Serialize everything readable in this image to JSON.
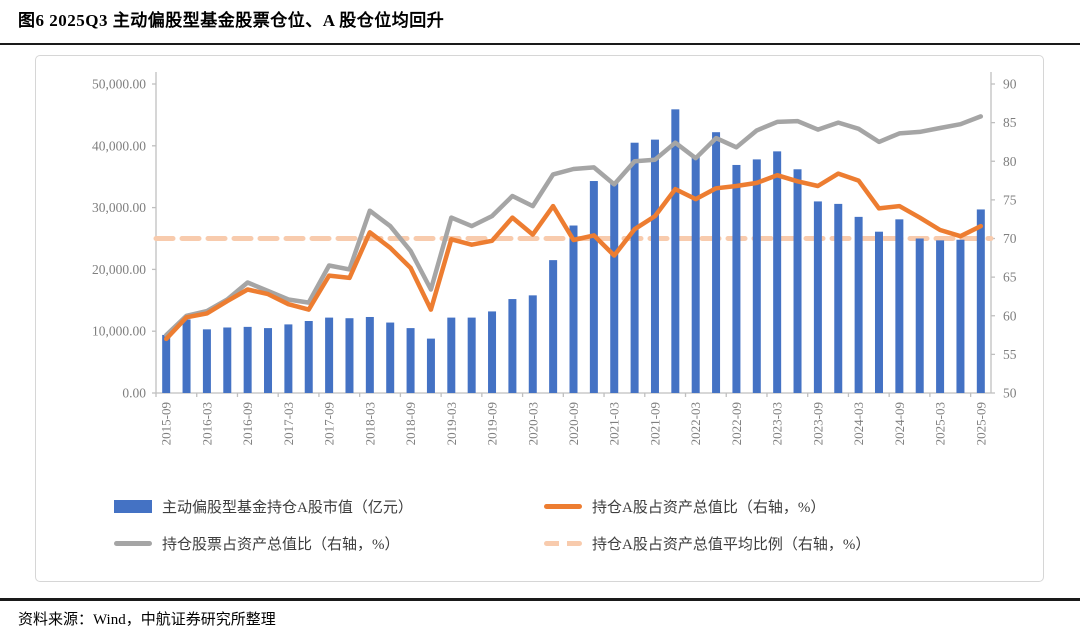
{
  "page": {
    "figure_title": "图6  2025Q3 主动偏股型基金股票仓位、A 股仓位均回升",
    "source_note": "资料来源：Wind，中航证券研究所整理"
  },
  "colors": {
    "bar_blue": "#4472C4",
    "orange_line": "#ED7D31",
    "gray_line": "#A5A5A5",
    "avg_dash": "#F8CBAD",
    "axis_text": "#7f7f7f",
    "axis_line": "#bfbfbf",
    "legend_text": "#3d3d3d"
  },
  "chart_data": {
    "type": "bar",
    "title": "",
    "grid": false,
    "legend_position": "bottom",
    "categories": [
      "2015-09",
      "2015-12",
      "2016-03",
      "2016-06",
      "2016-09",
      "2016-12",
      "2017-03",
      "2017-06",
      "2017-09",
      "2017-12",
      "2018-03",
      "2018-06",
      "2018-09",
      "2018-12",
      "2019-03",
      "2019-06",
      "2019-09",
      "2019-12",
      "2020-03",
      "2020-06",
      "2020-09",
      "2020-12",
      "2021-03",
      "2021-06",
      "2021-09",
      "2021-12",
      "2022-03",
      "2022-06",
      "2022-09",
      "2022-12",
      "2023-03",
      "2023-06",
      "2023-09",
      "2023-12",
      "2024-03",
      "2024-06",
      "2024-09",
      "2024-12",
      "2025-03",
      "2025-06",
      "2025-09"
    ],
    "x_tick_labels": [
      "2015-09",
      "2016-03",
      "2016-09",
      "2017-03",
      "2017-09",
      "2018-03",
      "2018-09",
      "2019-03",
      "2019-09",
      "2020-03",
      "2020-09",
      "2021-03",
      "2021-09",
      "2022-03",
      "2022-09",
      "2023-03",
      "2023-09",
      "2024-03",
      "2024-09",
      "2025-03",
      "2025-09"
    ],
    "left_axis": {
      "min": 0,
      "max": 50000,
      "step": 10000,
      "tick_labels": [
        "0.00",
        "10,000.00",
        "20,000.00",
        "30,000.00",
        "40,000.00",
        "50,000.00"
      ]
    },
    "right_axis": {
      "min": 50,
      "max": 90,
      "step": 5,
      "tick_labels": [
        "50",
        "55",
        "60",
        "65",
        "70",
        "75",
        "80",
        "85",
        "90"
      ]
    },
    "series": [
      {
        "name": "主动偏股型基金持仓A股市值（亿元）",
        "type": "bar",
        "axis": "left",
        "color": "#4472C4",
        "values": [
          9400,
          11900,
          10300,
          10600,
          10700,
          10500,
          11100,
          11650,
          12200,
          12100,
          12300,
          11400,
          10500,
          8800,
          12200,
          12200,
          13200,
          15200,
          15800,
          21500,
          27100,
          34300,
          34100,
          40500,
          41000,
          45900,
          38400,
          42200,
          36900,
          37800,
          39100,
          36200,
          31000,
          30600,
          28500,
          26100,
          28100,
          25000,
          24700,
          24800,
          29700
        ]
      },
      {
        "name": "持仓A股占资产总值比（右轴，%）",
        "type": "line",
        "axis": "right",
        "color": "#ED7D31",
        "values": [
          57.0,
          59.8,
          60.3,
          61.9,
          63.4,
          62.8,
          61.5,
          60.8,
          65.2,
          64.9,
          70.8,
          68.8,
          66.2,
          60.8,
          69.9,
          69.2,
          69.7,
          72.7,
          70.5,
          74.2,
          69.8,
          70.4,
          67.8,
          71.2,
          72.9,
          76.4,
          75.1,
          76.5,
          76.8,
          77.2,
          78.2,
          77.4,
          76.8,
          78.4,
          77.5,
          73.9,
          74.2,
          72.7,
          71.1,
          70.3,
          71.6
        ]
      },
      {
        "name": "持仓股票占资产总值比（右轴，%）",
        "type": "line",
        "axis": "right",
        "color": "#A5A5A5",
        "values": [
          57.5,
          60.0,
          60.6,
          62.1,
          64.3,
          63.2,
          62.1,
          61.7,
          66.5,
          66.0,
          73.6,
          71.6,
          68.4,
          63.4,
          72.7,
          71.6,
          72.9,
          75.5,
          74.2,
          78.3,
          79.0,
          79.2,
          77.0,
          80.0,
          80.2,
          82.4,
          80.4,
          83.0,
          81.8,
          84.0,
          85.1,
          85.2,
          84.1,
          85.0,
          84.2,
          82.5,
          83.6,
          83.8,
          84.3,
          84.8,
          85.8
        ]
      },
      {
        "name": "持仓A股占资产总值平均比例（右轴，%）",
        "type": "dashed-line",
        "axis": "right",
        "value": 70
      }
    ],
    "legend_order": [
      "主动偏股型基金持仓A股市值（亿元）",
      "持仓A股占资产总值比（右轴，%）",
      "持仓股票占资产总值比（右轴，%）",
      "持仓A股占资产总值平均比例（右轴，%）"
    ]
  }
}
